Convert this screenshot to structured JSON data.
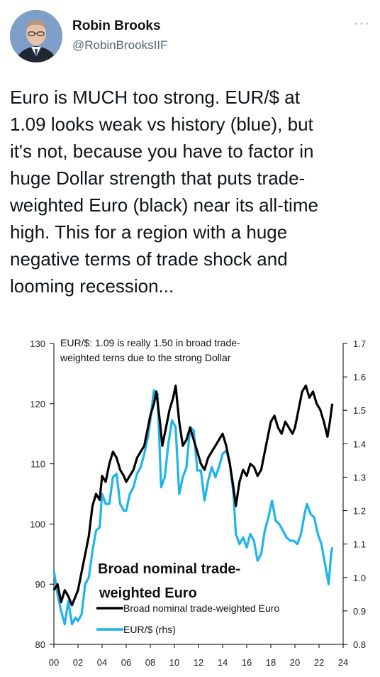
{
  "tweet": {
    "author_name": "Robin Brooks",
    "author_handle": "@RobinBrooksIIF",
    "more_icon": "ellipsis-icon",
    "text": "Euro is MUCH too strong. EUR/$ at\n1.09 looks weak vs history (blue), but\nit's not, because you have to factor in\nhuge Dollar strength that puts trade-\nweighted Euro (black) near its all-time\nhigh. This for a region with a huge\nnegative terms of trade shock and\nlooming recession..."
  },
  "chart_data": {
    "type": "line",
    "title": "EUR/$: 1.09 is really 1.50 in broad trade-",
    "subtitle": "weighted terns due to the strong Dollar",
    "annotation_line1": "Broad nominal trade-",
    "annotation_line2": "weighted Euro",
    "x_ticks": [
      "00",
      "02",
      "04",
      "06",
      "08",
      "10",
      "12",
      "14",
      "16",
      "18",
      "20",
      "22",
      "24"
    ],
    "x_range": [
      2000,
      2024
    ],
    "y_left_ticks": [
      "130",
      "120",
      "110",
      "100",
      "90",
      "80"
    ],
    "y_left_range": [
      80,
      130
    ],
    "y_right_ticks": [
      "1.7",
      "1.6",
      "1.5",
      "1.4",
      "1.3",
      "1.2",
      "1.1",
      "1.0",
      "0.9",
      "0.8"
    ],
    "y_right_range": [
      0.8,
      1.7
    ],
    "series": [
      {
        "name": "Broad nominal trade-weighted Euro",
        "axis": "left",
        "color": "#000000",
        "points": [
          [
            2000.0,
            89
          ],
          [
            2000.3,
            90
          ],
          [
            2000.6,
            87
          ],
          [
            2000.9,
            89
          ],
          [
            2001.2,
            88
          ],
          [
            2001.5,
            86.5
          ],
          [
            2001.8,
            88
          ],
          [
            2002.0,
            89
          ],
          [
            2002.3,
            92
          ],
          [
            2002.6,
            95
          ],
          [
            2002.9,
            98
          ],
          [
            2003.2,
            103
          ],
          [
            2003.5,
            105
          ],
          [
            2003.8,
            104
          ],
          [
            2004.0,
            108
          ],
          [
            2004.3,
            107
          ],
          [
            2004.6,
            110
          ],
          [
            2004.9,
            112
          ],
          [
            2005.2,
            111
          ],
          [
            2005.5,
            109
          ],
          [
            2005.8,
            108
          ],
          [
            2006.0,
            107
          ],
          [
            2006.3,
            108
          ],
          [
            2006.6,
            109
          ],
          [
            2006.9,
            111
          ],
          [
            2007.2,
            112
          ],
          [
            2007.5,
            113
          ],
          [
            2007.8,
            116
          ],
          [
            2008.0,
            118
          ],
          [
            2008.3,
            120
          ],
          [
            2008.5,
            122
          ],
          [
            2008.8,
            117
          ],
          [
            2009.0,
            113
          ],
          [
            2009.3,
            116
          ],
          [
            2009.6,
            119
          ],
          [
            2009.9,
            121
          ],
          [
            2010.1,
            123
          ],
          [
            2010.4,
            117
          ],
          [
            2010.7,
            113
          ],
          [
            2011.0,
            114
          ],
          [
            2011.3,
            116
          ],
          [
            2011.6,
            114
          ],
          [
            2011.9,
            112
          ],
          [
            2012.2,
            110
          ],
          [
            2012.5,
            109
          ],
          [
            2012.8,
            111
          ],
          [
            2013.1,
            112
          ],
          [
            2013.4,
            113
          ],
          [
            2013.7,
            114
          ],
          [
            2014.0,
            115
          ],
          [
            2014.3,
            113
          ],
          [
            2014.6,
            110
          ],
          [
            2014.9,
            106
          ],
          [
            2015.1,
            103
          ],
          [
            2015.4,
            107
          ],
          [
            2015.7,
            109
          ],
          [
            2016.0,
            108
          ],
          [
            2016.3,
            110
          ],
          [
            2016.6,
            109.5
          ],
          [
            2016.9,
            108
          ],
          [
            2017.2,
            109
          ],
          [
            2017.5,
            112
          ],
          [
            2017.8,
            115
          ],
          [
            2018.0,
            117
          ],
          [
            2018.3,
            118
          ],
          [
            2018.6,
            116
          ],
          [
            2018.9,
            115
          ],
          [
            2019.2,
            117
          ],
          [
            2019.5,
            116
          ],
          [
            2019.8,
            115
          ],
          [
            2020.0,
            116
          ],
          [
            2020.3,
            119
          ],
          [
            2020.6,
            122
          ],
          [
            2020.9,
            123
          ],
          [
            2021.2,
            121
          ],
          [
            2021.5,
            122
          ],
          [
            2021.8,
            120
          ],
          [
            2022.1,
            119
          ],
          [
            2022.4,
            117
          ],
          [
            2022.7,
            114.5
          ],
          [
            2022.9,
            117
          ],
          [
            2023.1,
            120
          ]
        ]
      },
      {
        "name": "EUR/$ (rhs)",
        "axis": "right",
        "color": "#1fb4ea",
        "points": [
          [
            2000.0,
            1.02
          ],
          [
            2000.3,
            0.95
          ],
          [
            2000.6,
            0.9
          ],
          [
            2000.9,
            0.86
          ],
          [
            2001.2,
            0.93
          ],
          [
            2001.5,
            0.86
          ],
          [
            2001.8,
            0.88
          ],
          [
            2002.0,
            0.87
          ],
          [
            2002.3,
            0.89
          ],
          [
            2002.6,
            0.98
          ],
          [
            2002.9,
            1.0
          ],
          [
            2003.2,
            1.08
          ],
          [
            2003.5,
            1.14
          ],
          [
            2003.8,
            1.15
          ],
          [
            2004.0,
            1.25
          ],
          [
            2004.3,
            1.22
          ],
          [
            2004.6,
            1.22
          ],
          [
            2004.9,
            1.3
          ],
          [
            2005.2,
            1.31
          ],
          [
            2005.5,
            1.22
          ],
          [
            2005.8,
            1.2
          ],
          [
            2006.0,
            1.2
          ],
          [
            2006.3,
            1.25
          ],
          [
            2006.6,
            1.27
          ],
          [
            2006.9,
            1.31
          ],
          [
            2007.2,
            1.33
          ],
          [
            2007.5,
            1.37
          ],
          [
            2007.8,
            1.42
          ],
          [
            2008.0,
            1.47
          ],
          [
            2008.3,
            1.56
          ],
          [
            2008.6,
            1.55
          ],
          [
            2008.9,
            1.27
          ],
          [
            2009.2,
            1.3
          ],
          [
            2009.5,
            1.4
          ],
          [
            2009.8,
            1.47
          ],
          [
            2010.1,
            1.45
          ],
          [
            2010.4,
            1.25
          ],
          [
            2010.7,
            1.3
          ],
          [
            2011.0,
            1.33
          ],
          [
            2011.3,
            1.45
          ],
          [
            2011.6,
            1.44
          ],
          [
            2011.9,
            1.32
          ],
          [
            2012.2,
            1.32
          ],
          [
            2012.5,
            1.23
          ],
          [
            2012.8,
            1.29
          ],
          [
            2013.1,
            1.33
          ],
          [
            2013.4,
            1.3
          ],
          [
            2013.7,
            1.33
          ],
          [
            2014.0,
            1.37
          ],
          [
            2014.3,
            1.38
          ],
          [
            2014.6,
            1.34
          ],
          [
            2014.9,
            1.25
          ],
          [
            2015.1,
            1.13
          ],
          [
            2015.4,
            1.1
          ],
          [
            2015.7,
            1.12
          ],
          [
            2016.0,
            1.09
          ],
          [
            2016.3,
            1.13
          ],
          [
            2016.6,
            1.11
          ],
          [
            2016.9,
            1.05
          ],
          [
            2017.2,
            1.07
          ],
          [
            2017.5,
            1.14
          ],
          [
            2017.8,
            1.18
          ],
          [
            2018.1,
            1.23
          ],
          [
            2018.4,
            1.17
          ],
          [
            2018.7,
            1.16
          ],
          [
            2019.0,
            1.14
          ],
          [
            2019.3,
            1.12
          ],
          [
            2019.6,
            1.11
          ],
          [
            2019.9,
            1.11
          ],
          [
            2020.2,
            1.1
          ],
          [
            2020.5,
            1.13
          ],
          [
            2020.8,
            1.19
          ],
          [
            2021.0,
            1.22
          ],
          [
            2021.3,
            1.19
          ],
          [
            2021.6,
            1.18
          ],
          [
            2021.9,
            1.13
          ],
          [
            2022.2,
            1.1
          ],
          [
            2022.5,
            1.04
          ],
          [
            2022.8,
            0.98
          ],
          [
            2023.0,
            1.07
          ],
          [
            2023.1,
            1.09
          ]
        ]
      }
    ],
    "legend": [
      {
        "label": "Broad nominal trade-weighted Euro",
        "color": "#000000"
      },
      {
        "label": "EUR/$ (rhs)",
        "color": "#1fb4ea"
      }
    ],
    "legend_position": "bottom-center",
    "grid": false
  }
}
